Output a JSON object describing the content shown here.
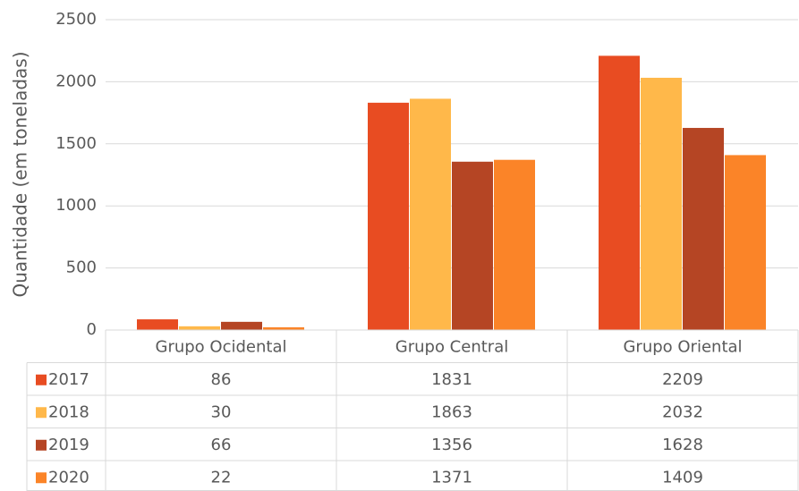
{
  "chart_data": {
    "type": "bar",
    "y_axis_label": "Quantidade (em toneladas)",
    "categories": [
      "Grupo Ocidental",
      "Grupo Central",
      "Grupo Oriental"
    ],
    "series": [
      {
        "name": "2017",
        "color": "#e84c22",
        "values": [
          86,
          1831,
          2209
        ]
      },
      {
        "name": "2018",
        "color": "#ffb84a",
        "values": [
          30,
          1863,
          2032
        ]
      },
      {
        "name": "2019",
        "color": "#b54524",
        "values": [
          66,
          1356,
          1628
        ]
      },
      {
        "name": "2020",
        "color": "#fb8428",
        "values": [
          22,
          1371,
          1409
        ]
      }
    ],
    "ylim": [
      0,
      2500
    ],
    "yticks": [
      0,
      500,
      1000,
      1500,
      2000,
      2500
    ],
    "grid": true,
    "data_table": true
  }
}
